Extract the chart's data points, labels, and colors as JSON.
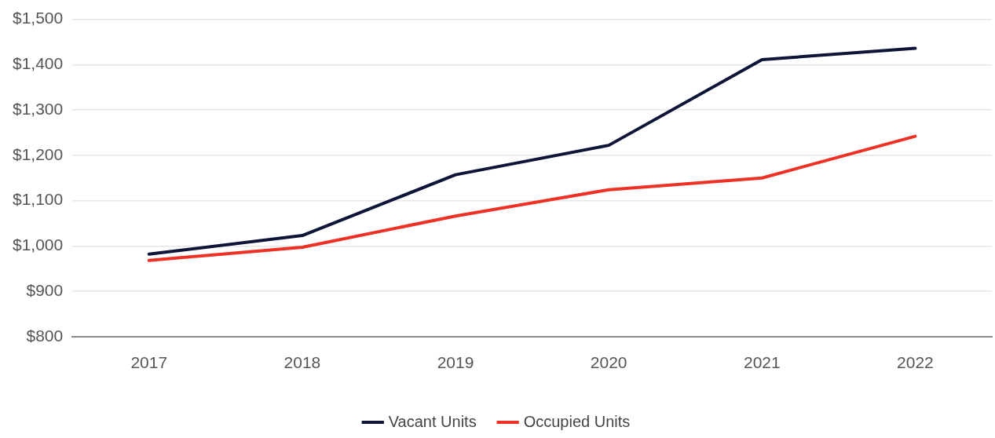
{
  "chart_data": {
    "type": "line",
    "categories": [
      "2017",
      "2018",
      "2019",
      "2020",
      "2021",
      "2022"
    ],
    "series": [
      {
        "name": "Vacant Units",
        "color": "#0d1538",
        "values": [
          982,
          1023,
          1157,
          1222,
          1411,
          1436
        ]
      },
      {
        "name": "Occupied Units",
        "color": "#ee3124",
        "values": [
          968,
          997,
          1066,
          1124,
          1150,
          1242
        ]
      }
    ],
    "ylim": [
      800,
      1500
    ],
    "yticks": [
      {
        "value": 800,
        "label": "$800"
      },
      {
        "value": 900,
        "label": "$900"
      },
      {
        "value": 1000,
        "label": "$1,000"
      },
      {
        "value": 1100,
        "label": "$1,100"
      },
      {
        "value": 1200,
        "label": "$1,200"
      },
      {
        "value": 1300,
        "label": "$1,300"
      },
      {
        "value": 1400,
        "label": "$1,400"
      },
      {
        "value": 1500,
        "label": "$1,500"
      }
    ],
    "grid": "y",
    "legend": "bottom",
    "marker": "none",
    "line_style": "solid"
  }
}
